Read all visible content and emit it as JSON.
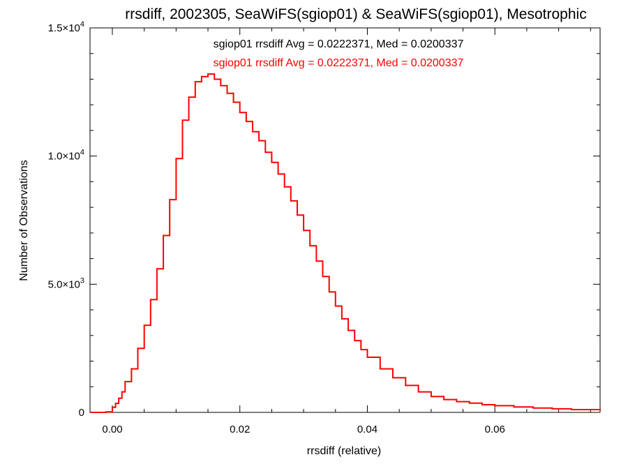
{
  "chart_data": {
    "type": "line",
    "title": "rrsdiff, 2002305, SeaWiFS(sgiop01) & SeaWiFS(sgiop01), Mesotrophic",
    "xlabel": "rrsdiff (relative)",
    "ylabel": "Number of Observations",
    "xlim": [
      -0.0035,
      0.0765
    ],
    "ylim": [
      0,
      15000
    ],
    "x_ticks": [
      {
        "value": 0.0,
        "label": "0.00"
      },
      {
        "value": 0.02,
        "label": "0.02"
      },
      {
        "value": 0.04,
        "label": "0.04"
      },
      {
        "value": 0.06,
        "label": "0.06"
      }
    ],
    "y_ticks": [
      {
        "value": 0,
        "mantissa": "0",
        "exp": ""
      },
      {
        "value": 5000,
        "mantissa": "5.0×10",
        "exp": "3"
      },
      {
        "value": 10000,
        "mantissa": "1.0×10",
        "exp": "4"
      },
      {
        "value": 15000,
        "mantissa": "1.5×10",
        "exp": "4"
      }
    ],
    "annotations": [
      {
        "text": "sgiop01 rrsdiff Avg = 0.0222371, Med = 0.0200337",
        "color": "#000000"
      },
      {
        "text": "sgiop01 rrsdiff Avg = 0.0222371, Med = 0.0200337",
        "color": "#ff0000"
      }
    ],
    "series": [
      {
        "color": "#ff0000",
        "drawstyle": "steps",
        "x": [
          -0.0035,
          -0.002,
          -0.001,
          0.0,
          0.0005,
          0.001,
          0.0015,
          0.002,
          0.003,
          0.004,
          0.005,
          0.006,
          0.007,
          0.008,
          0.009,
          0.01,
          0.011,
          0.012,
          0.013,
          0.014,
          0.015,
          0.016,
          0.017,
          0.018,
          0.019,
          0.02,
          0.021,
          0.022,
          0.023,
          0.024,
          0.025,
          0.026,
          0.027,
          0.028,
          0.029,
          0.03,
          0.031,
          0.032,
          0.033,
          0.034,
          0.035,
          0.036,
          0.037,
          0.038,
          0.039,
          0.04,
          0.042,
          0.044,
          0.046,
          0.048,
          0.05,
          0.052,
          0.054,
          0.056,
          0.058,
          0.06,
          0.063,
          0.066,
          0.069,
          0.072,
          0.0765
        ],
        "y": [
          0,
          0,
          20,
          200,
          350,
          550,
          800,
          1200,
          1700,
          2500,
          3400,
          4400,
          5600,
          6900,
          8300,
          9900,
          11400,
          12300,
          12900,
          13100,
          13200,
          13000,
          12750,
          12450,
          12100,
          11700,
          11350,
          10950,
          10600,
          10150,
          9750,
          9300,
          8800,
          8250,
          7700,
          7100,
          6500,
          5900,
          5300,
          4700,
          4150,
          3650,
          3200,
          2800,
          2450,
          2150,
          1700,
          1350,
          1050,
          800,
          620,
          500,
          420,
          360,
          300,
          260,
          210,
          170,
          140,
          110,
          80
        ]
      }
    ]
  }
}
